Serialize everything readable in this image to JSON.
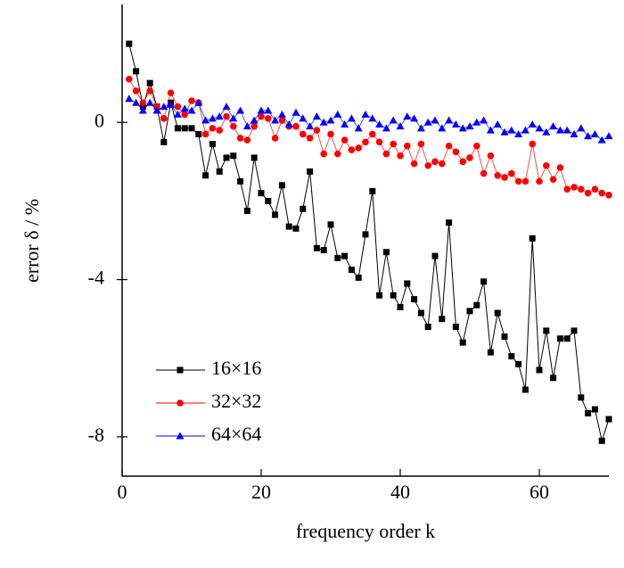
{
  "chart_data": {
    "type": "line",
    "xlabel": "frequency order k",
    "ylabel": "error δ / %",
    "x": [
      1,
      2,
      3,
      4,
      5,
      6,
      7,
      8,
      9,
      10,
      11,
      12,
      13,
      14,
      15,
      16,
      17,
      18,
      19,
      20,
      21,
      22,
      23,
      24,
      25,
      26,
      27,
      28,
      29,
      30,
      31,
      32,
      33,
      34,
      35,
      36,
      37,
      38,
      39,
      40,
      41,
      42,
      43,
      44,
      45,
      46,
      47,
      48,
      49,
      50,
      51,
      52,
      53,
      54,
      55,
      56,
      57,
      58,
      59,
      60,
      61,
      62,
      63,
      64,
      65,
      66,
      67,
      68,
      69,
      70
    ],
    "series": [
      {
        "name": "16×16",
        "color": "#000000",
        "marker": "square",
        "values": [
          2.0,
          1.3,
          0.4,
          1.0,
          0.4,
          -0.5,
          0.5,
          -0.15,
          -0.15,
          -0.15,
          -0.3,
          -1.35,
          -0.55,
          -1.25,
          -0.9,
          -0.85,
          -1.5,
          -2.25,
          -0.9,
          -1.8,
          -2.0,
          -2.35,
          -1.6,
          -2.65,
          -2.7,
          -2.2,
          -1.25,
          -3.2,
          -3.25,
          -2.6,
          -3.45,
          -3.4,
          -3.75,
          -3.95,
          -2.85,
          -1.75,
          -4.4,
          -3.3,
          -4.4,
          -4.7,
          -4.1,
          -4.5,
          -4.85,
          -5.2,
          -3.4,
          -5.0,
          -2.55,
          -5.2,
          -5.6,
          -4.8,
          -4.65,
          -4.05,
          -5.85,
          -4.85,
          -5.45,
          -5.95,
          -6.15,
          -6.8,
          -2.95,
          -6.3,
          -5.3,
          -6.5,
          -5.5,
          -5.5,
          -5.3,
          -7.0,
          -7.4,
          -7.3,
          -8.1,
          -7.55
        ]
      },
      {
        "name": "32×32",
        "color": "#ff0000",
        "marker": "circle",
        "values": [
          1.1,
          0.8,
          0.5,
          0.8,
          0.4,
          0.1,
          0.75,
          0.4,
          0.2,
          0.55,
          0.5,
          -0.3,
          -0.15,
          -0.2,
          0.15,
          -0.1,
          -0.4,
          -0.45,
          -0.1,
          0.15,
          0.1,
          -0.4,
          0.05,
          -0.1,
          -0.1,
          -0.3,
          -0.4,
          -0.2,
          -0.8,
          -0.3,
          -0.8,
          -0.45,
          -0.7,
          -0.65,
          -0.5,
          -0.3,
          -0.5,
          -0.8,
          -0.55,
          -0.85,
          -0.6,
          -1.05,
          -0.55,
          -1.1,
          -1.0,
          -1.05,
          -0.6,
          -0.75,
          -1.0,
          -0.9,
          -0.6,
          -1.3,
          -0.85,
          -1.35,
          -1.4,
          -1.3,
          -1.5,
          -1.5,
          -0.55,
          -1.5,
          -1.1,
          -1.45,
          -1.15,
          -1.7,
          -1.65,
          -1.7,
          -1.8,
          -1.7,
          -1.8,
          -1.85
        ]
      },
      {
        "name": "64×64",
        "color": "#0000ff",
        "marker": "triangle",
        "values": [
          0.6,
          0.5,
          0.3,
          0.5,
          0.3,
          0.4,
          0.45,
          0.2,
          0.35,
          0.3,
          0.5,
          0.05,
          0.1,
          0.15,
          0.4,
          0.1,
          0.3,
          -0.1,
          0.05,
          0.3,
          0.3,
          0.05,
          0.2,
          -0.05,
          0.25,
          0.1,
          -0.1,
          0.15,
          0.0,
          0.05,
          0.2,
          -0.05,
          0.1,
          -0.15,
          0.2,
          0.1,
          -0.05,
          -0.15,
          0.05,
          -0.1,
          0.15,
          0.1,
          -0.15,
          0.0,
          0.05,
          -0.15,
          0.05,
          -0.05,
          -0.15,
          -0.1,
          0.0,
          0.05,
          -0.2,
          -0.05,
          -0.25,
          -0.2,
          -0.3,
          -0.2,
          -0.05,
          -0.15,
          -0.25,
          -0.1,
          -0.2,
          -0.2,
          -0.3,
          -0.15,
          -0.35,
          -0.3,
          -0.45,
          -0.35
        ]
      }
    ],
    "xlim": [
      0,
      70
    ],
    "xticks": [
      0,
      20,
      40,
      60
    ],
    "ylim": [
      -9,
      3
    ],
    "yticks": [
      -8,
      -4,
      0
    ],
    "legend": "lower-left",
    "grid": false
  }
}
